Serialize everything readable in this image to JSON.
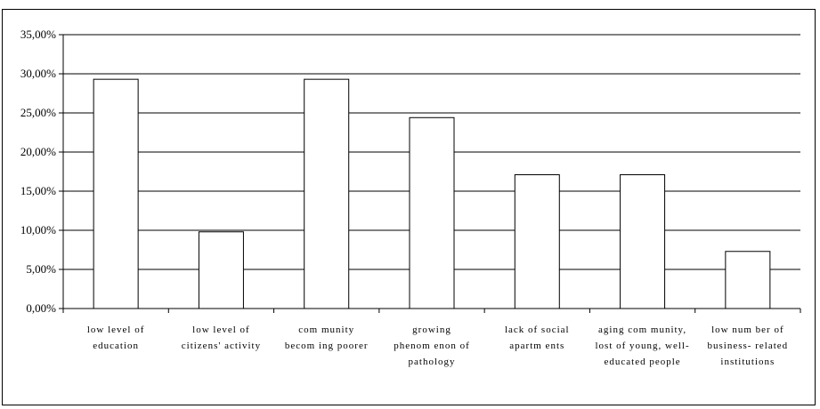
{
  "chart_data": {
    "type": "bar",
    "title": "",
    "xlabel": "",
    "ylabel": "",
    "ylim": [
      0,
      35
    ],
    "grid": true,
    "legend": "none",
    "bar_fill": "#ffffff",
    "bar_stroke": "#000000",
    "ytick_labels": [
      "0,00%",
      "5,00%",
      "10,00%",
      "15,00%",
      "20,00%",
      "25,00%",
      "30,00%",
      "35,00%"
    ],
    "ytick_values": [
      0,
      5,
      10,
      15,
      20,
      25,
      30,
      35
    ],
    "categories": [
      [
        "low level of",
        "education"
      ],
      [
        "low level of",
        "citizens' activity"
      ],
      [
        "com munity",
        "becom ing poorer"
      ],
      [
        "growing",
        "phenom enon of",
        "pathology"
      ],
      [
        "lack of social",
        "apartm ents"
      ],
      [
        "aging com munity,",
        "lost of young, well-",
        "educated people"
      ],
      [
        "low num ber of",
        "business- related",
        "institutions"
      ]
    ],
    "values": [
      29.3,
      9.8,
      29.3,
      24.4,
      17.1,
      17.1,
      7.3
    ]
  }
}
